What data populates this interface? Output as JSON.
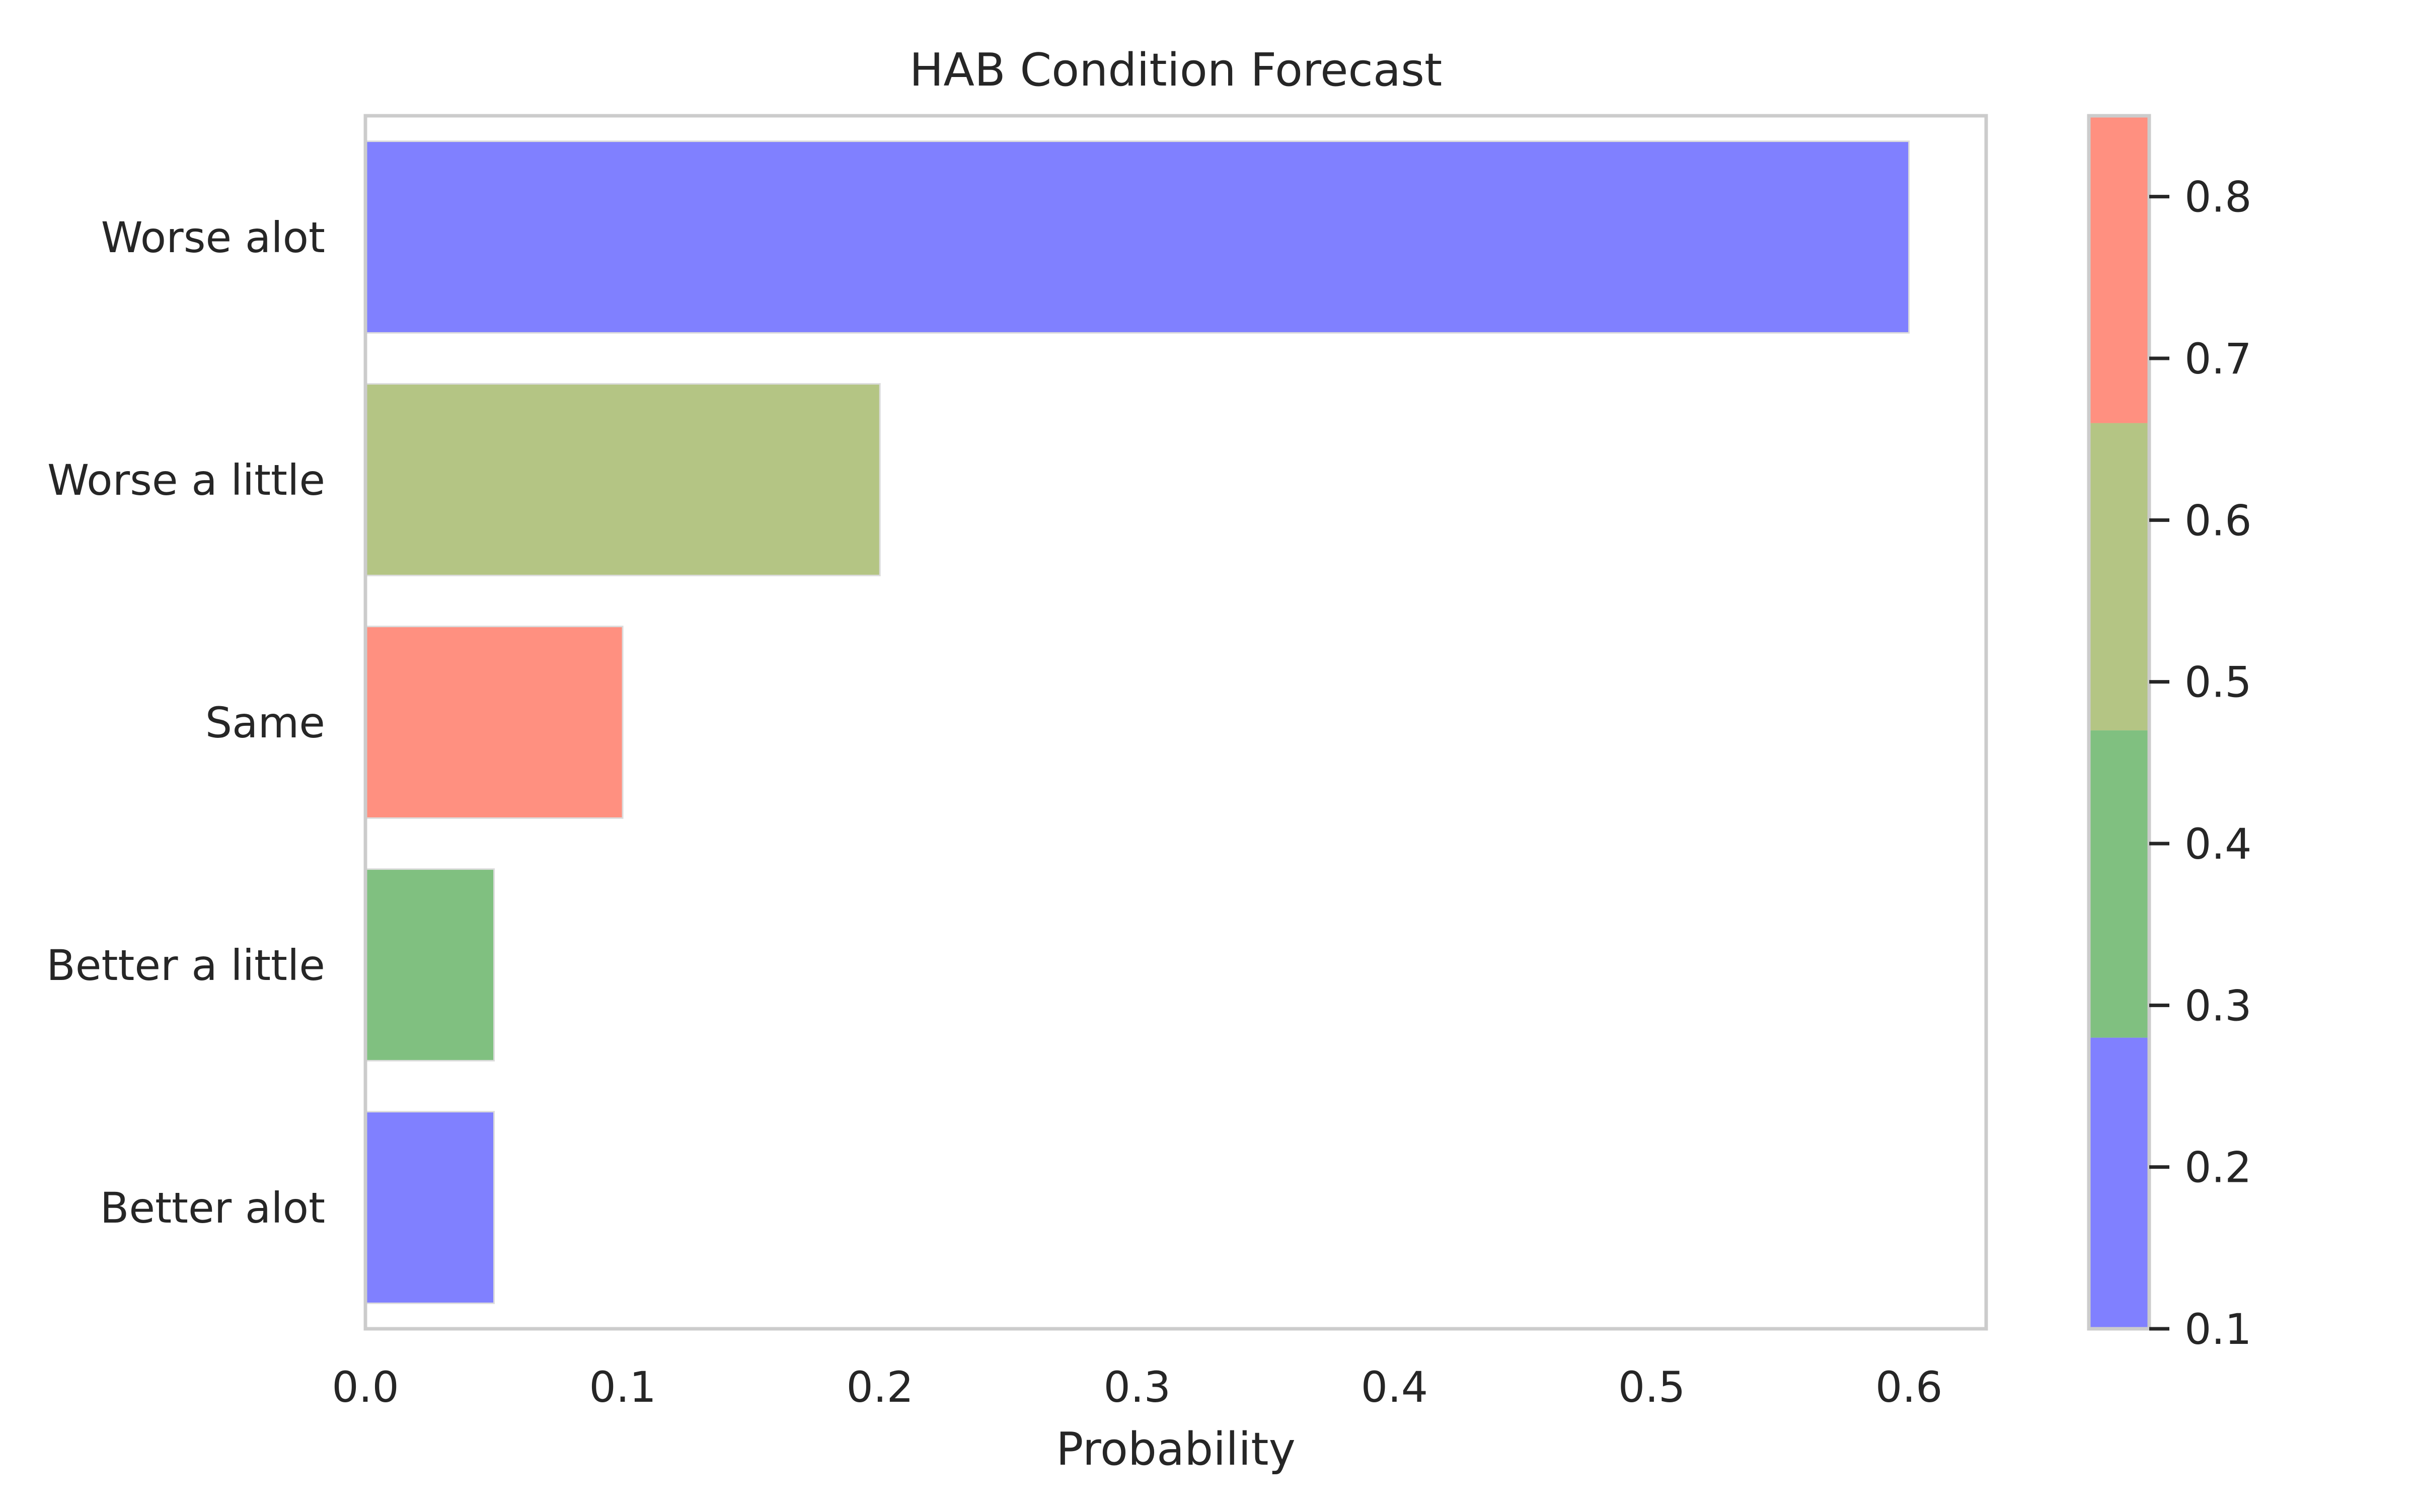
{
  "chart_data": {
    "type": "bar",
    "orientation": "horizontal",
    "title": "HAB Condition Forecast",
    "xlabel": "Probability",
    "ylabel": "",
    "xlim": [
      0,
      0.63
    ],
    "x_ticks": [
      "0.0",
      "0.1",
      "0.2",
      "0.3",
      "0.4",
      "0.5",
      "0.6"
    ],
    "categories": [
      "Worse alot",
      "Worse a little",
      "Same",
      "Better a little",
      "Better alot"
    ],
    "values": [
      0.6,
      0.2,
      0.1,
      0.05,
      0.05
    ],
    "bar_colors": [
      "#8080ff",
      "#b4c584",
      "#ff9080",
      "#80c080",
      "#8080ff"
    ],
    "grid": false,
    "colorbar": {
      "range": [
        0.1,
        0.85
      ],
      "ticks": [
        "0.1",
        "0.2",
        "0.3",
        "0.4",
        "0.5",
        "0.6",
        "0.7",
        "0.8"
      ],
      "segments": [
        {
          "from": 0.1,
          "to": 0.28,
          "color": "#8080ff"
        },
        {
          "from": 0.28,
          "to": 0.47,
          "color": "#80c080"
        },
        {
          "from": 0.47,
          "to": 0.66,
          "color": "#b4c584"
        },
        {
          "from": 0.66,
          "to": 0.85,
          "color": "#ff9080"
        }
      ]
    },
    "frame_color": "#cccccc"
  }
}
